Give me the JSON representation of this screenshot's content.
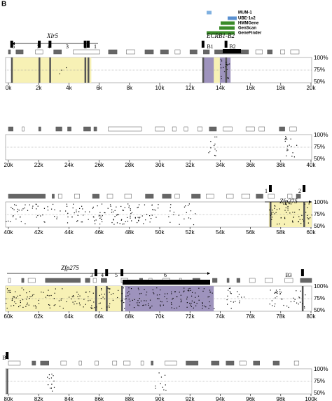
{
  "panel_label": "B",
  "legend": [
    "MUM-1",
    "UBE-1c2",
    "HMMGene",
    "GenScan",
    "GeneFinder"
  ],
  "panels": [
    {
      "gene_labels": [
        "Xlr5",
        "ECRB1-B2"
      ],
      "exon_labels": [
        "6",
        "5",
        "4",
        "3",
        "2",
        "1",
        "B1",
        "B2"
      ],
      "x_ticks": [
        "0k",
        "2k",
        "4k",
        "6k",
        "8k",
        "10k",
        "12k",
        "14k",
        "16k",
        "18k",
        "20k"
      ],
      "y_ticks": [
        "100%",
        "75%",
        "50%"
      ]
    },
    {
      "gene_labels": [],
      "exon_labels": [],
      "x_ticks": [
        "20k",
        "22k",
        "24k",
        "26k",
        "28k",
        "30k",
        "32k",
        "34k",
        "36k",
        "38k",
        "40k"
      ],
      "y_ticks": [
        "100%",
        "75%",
        "50%"
      ]
    },
    {
      "gene_labels": [
        "Zfp275"
      ],
      "exon_labels": [
        "1",
        "2"
      ],
      "x_ticks": [
        "40k",
        "42k",
        "44k",
        "46k",
        "48k",
        "50k",
        "52k",
        "54k",
        "56k",
        "58k",
        "60k"
      ],
      "y_ticks": [
        "100%",
        "75%",
        "50%"
      ]
    },
    {
      "gene_labels": [
        "Zfp275"
      ],
      "exon_labels": [
        "3",
        "4",
        "5",
        "6",
        "B3"
      ],
      "x_ticks": [
        "60k",
        "62k",
        "64k",
        "66k",
        "68k",
        "70k",
        "72k",
        "74k",
        "76k",
        "78k",
        "80k"
      ],
      "y_ticks": [
        "100%",
        "75%",
        "50%"
      ]
    },
    {
      "gene_labels": [],
      "exon_labels": [
        "B4"
      ],
      "x_ticks": [
        "80k",
        "82k",
        "84k",
        "86k",
        "88k",
        "90k",
        "92k",
        "94k",
        "96k",
        "98k",
        "100k"
      ],
      "y_ticks": [
        "100%",
        "75%",
        "50%"
      ]
    }
  ]
}
